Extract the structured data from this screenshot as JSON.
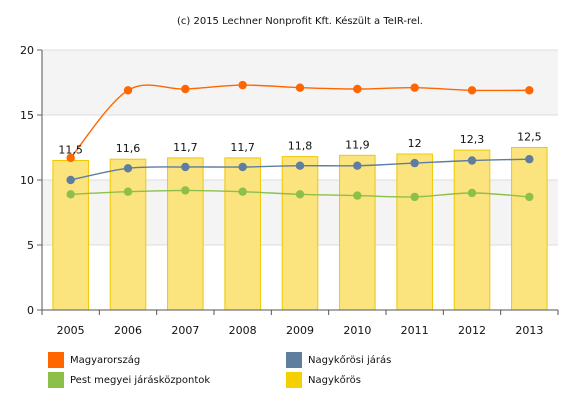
{
  "chart_data": {
    "type": "bar",
    "title": "(c) 2015 Lechner Nonprofit Kft. Készült a TeIR-rel.",
    "categories": [
      "2005",
      "2006",
      "2007",
      "2008",
      "2009",
      "2010",
      "2011",
      "2012",
      "2013"
    ],
    "ylim": [
      0,
      20
    ],
    "yticks": [
      0,
      5,
      10,
      15,
      20
    ],
    "grid": true,
    "legend_position": "bottom",
    "bars": {
      "name": "Nagykőrös",
      "color": "#f5d000",
      "values": [
        11.5,
        11.6,
        11.7,
        11.7,
        11.8,
        11.9,
        12,
        12.3,
        12.5
      ],
      "labels": [
        "11,5",
        "11,6",
        "11,7",
        "11,7",
        "11,8",
        "11,9",
        "12",
        "12,3",
        "12,5"
      ]
    },
    "series": [
      {
        "name": "Magyarország",
        "color": "#ff6600",
        "values": [
          11.7,
          16.9,
          17.0,
          17.3,
          17.1,
          17.0,
          17.1,
          16.9,
          16.9
        ]
      },
      {
        "name": "Nagykőrösi járás",
        "color": "#5f7d9e",
        "values": [
          10.0,
          10.9,
          11.0,
          11.0,
          11.1,
          11.1,
          11.3,
          11.5,
          11.6
        ]
      },
      {
        "name": "Pest megyei járásközpontok",
        "color": "#8dc04a",
        "values": [
          8.9,
          9.1,
          9.2,
          9.1,
          8.9,
          8.8,
          8.7,
          9.0,
          8.7
        ]
      }
    ]
  }
}
